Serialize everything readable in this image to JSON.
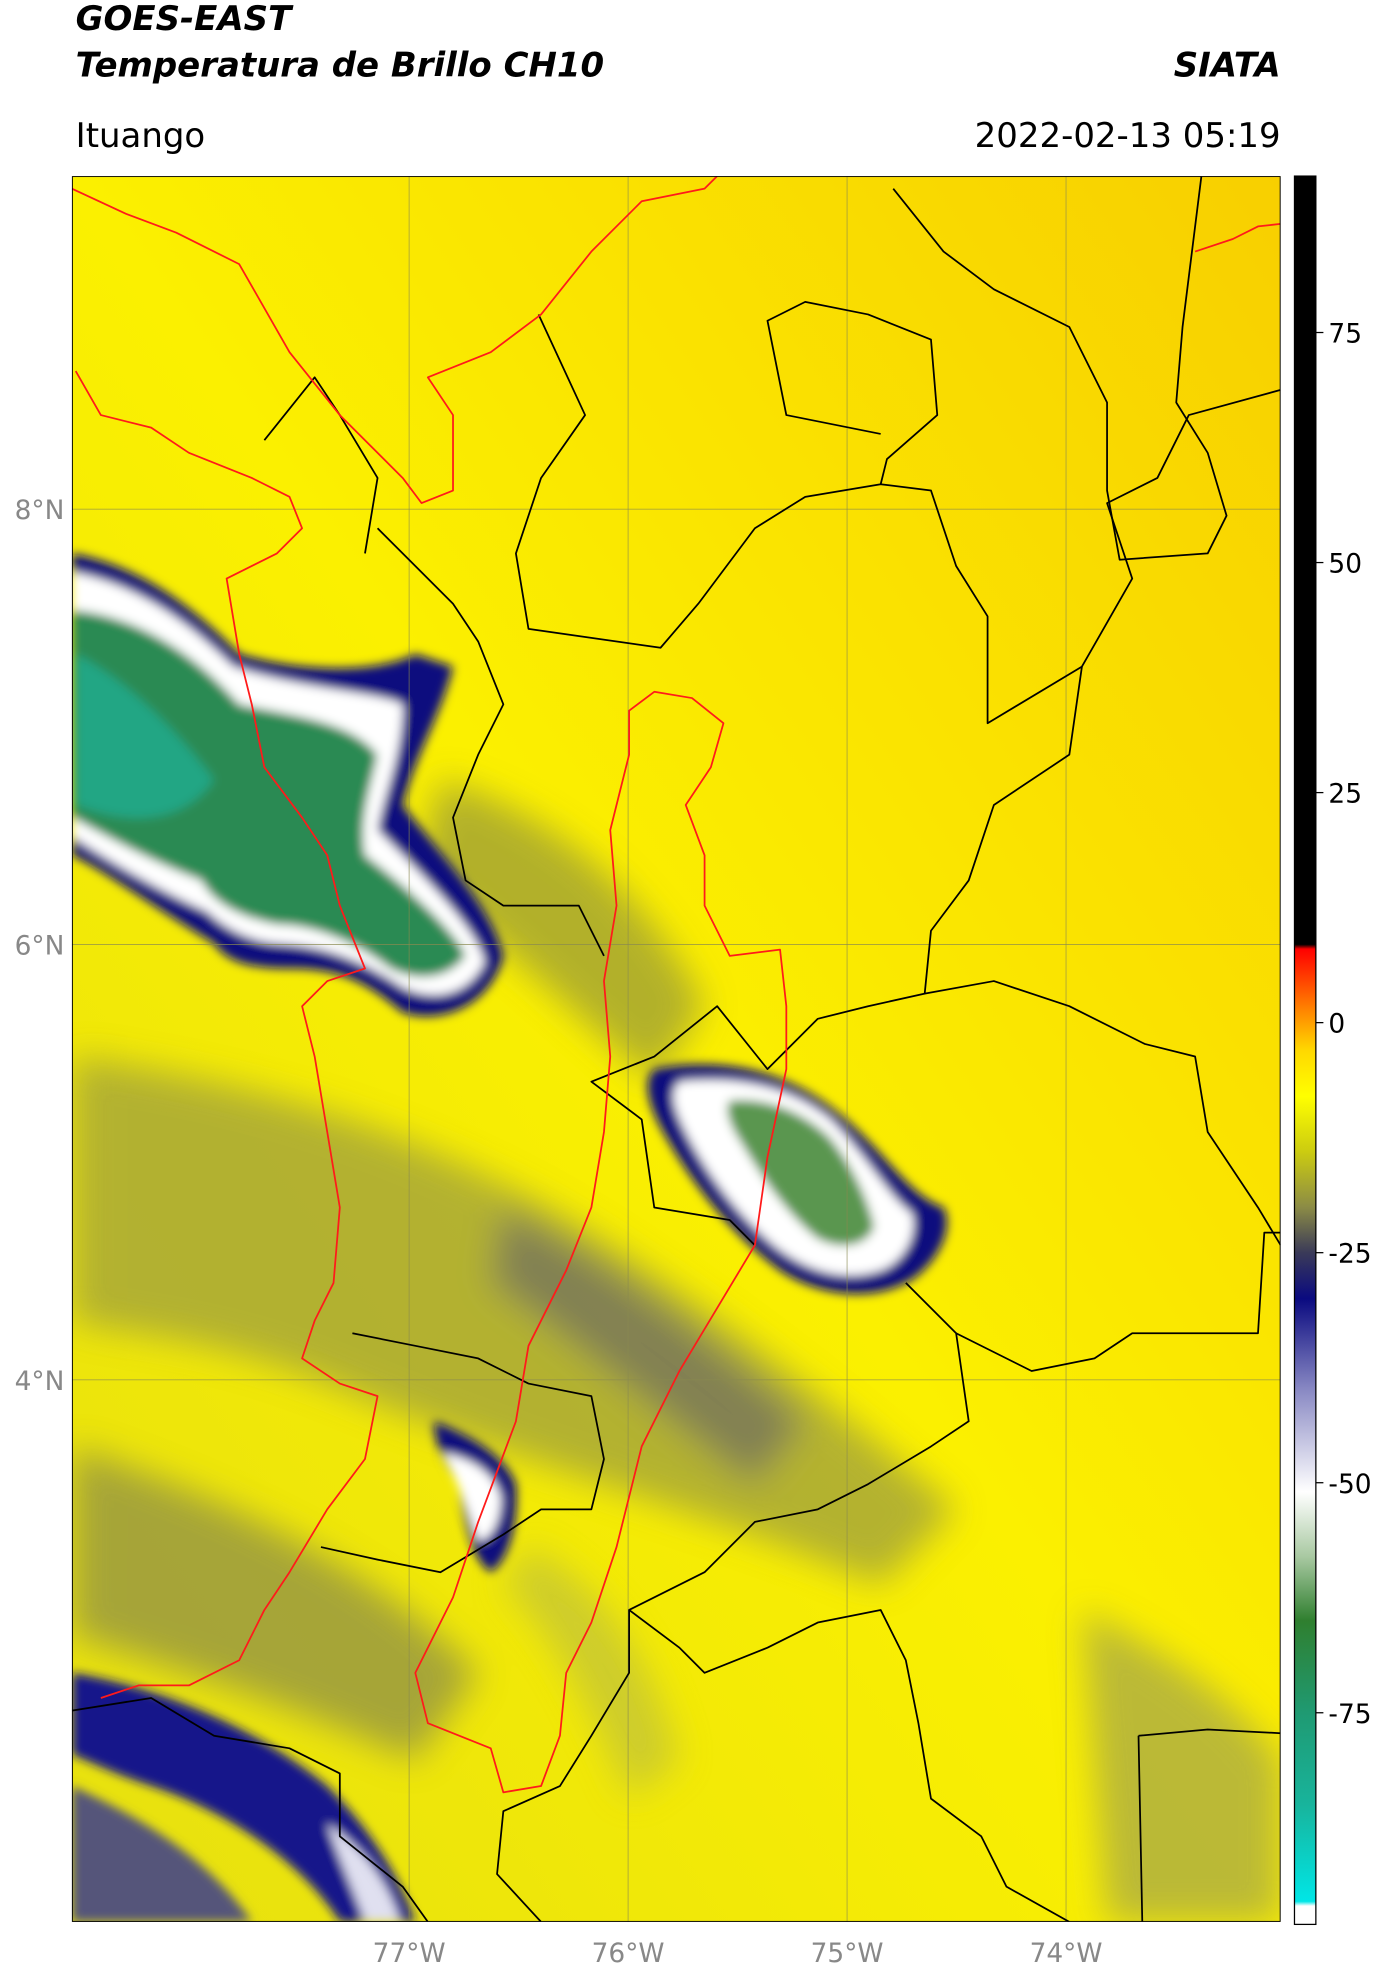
{
  "header": {
    "title": "GOES-EAST",
    "subtitle": "Temperatura de Brillo CH10",
    "source": "SIATA",
    "location": "Ituango",
    "datetime": "2022-02-13 05:19"
  },
  "map": {
    "lat_lim": [
      1.51,
      9.53
    ],
    "lon_lim": [
      -78.54,
      -73.02
    ],
    "lat_ticks": [
      {
        "value": 8,
        "label": "8°N"
      },
      {
        "value": 6,
        "label": "6°N"
      },
      {
        "value": 4,
        "label": "4°N"
      }
    ],
    "lon_ticks": [
      {
        "value": -77,
        "label": "77°W"
      },
      {
        "value": -76,
        "label": "76°W"
      },
      {
        "value": -75,
        "label": "75°W"
      },
      {
        "value": -74,
        "label": "74°W"
      }
    ],
    "grid": true
  },
  "colorbar": {
    "lim": [
      -98,
      92
    ],
    "ticks": [
      75,
      50,
      25,
      0,
      -25,
      -50,
      -75
    ],
    "colormap": [
      {
        "value": -98,
        "color": "#ffffff"
      },
      {
        "value": -96,
        "color": "#ffffff"
      },
      {
        "value": -95.5,
        "color": "#00e6e6"
      },
      {
        "value": -85,
        "color": "#18b49c"
      },
      {
        "value": -75,
        "color": "#1f9a72"
      },
      {
        "value": -65,
        "color": "#2f7f2f"
      },
      {
        "value": -58,
        "color": "#a9c9a2"
      },
      {
        "value": -51,
        "color": "#ffffff"
      },
      {
        "value": -40,
        "color": "#8a8ac4"
      },
      {
        "value": -30,
        "color": "#0a0a80"
      },
      {
        "value": -25,
        "color": "#3a3a58"
      },
      {
        "value": -20,
        "color": "#8c8c45"
      },
      {
        "value": -14,
        "color": "#cccc10"
      },
      {
        "value": -8,
        "color": "#ffff00"
      },
      {
        "value": -3,
        "color": "#ffd800"
      },
      {
        "value": 1,
        "color": "#ff8c00"
      },
      {
        "value": 8,
        "color": "#ff0000"
      },
      {
        "value": 8.5,
        "color": "#000000"
      },
      {
        "value": 92,
        "color": "#000000"
      }
    ]
  }
}
